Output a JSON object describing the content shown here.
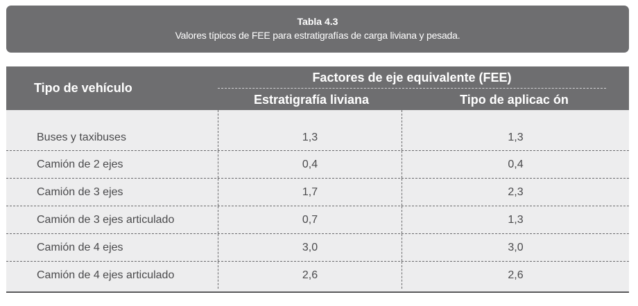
{
  "caption": {
    "title": "Tabla 4.3",
    "subtitle": "Valores típicos de FEE para estratigrafías de carga liviana y pesada."
  },
  "table": {
    "header": {
      "vehicle": "Tipo de vehículo",
      "group": "Factores de eje equivalente (FEE)",
      "col1": "Estratigrafía liviana",
      "col2": "Tipo de aplicac ón"
    },
    "rows": [
      {
        "vehicle": "Buses y  taxibuses",
        "liviana": "1,3",
        "aplicacion": "1,3"
      },
      {
        "vehicle": "Camión de 2 ejes",
        "liviana": "0,4",
        "aplicacion": "0,4"
      },
      {
        "vehicle": "Camión de 3 ejes",
        "liviana": "1,7",
        "aplicacion": "2,3"
      },
      {
        "vehicle": "Camión de 3 ejes articulado",
        "liviana": "0,7",
        "aplicacion": "1,3"
      },
      {
        "vehicle": "Camión de 4 ejes",
        "liviana": "3,0",
        "aplicacion": "3,0"
      },
      {
        "vehicle": "Camión de 4 ejes articulado",
        "liviana": "2,6",
        "aplicacion": "2,6"
      }
    ]
  }
}
